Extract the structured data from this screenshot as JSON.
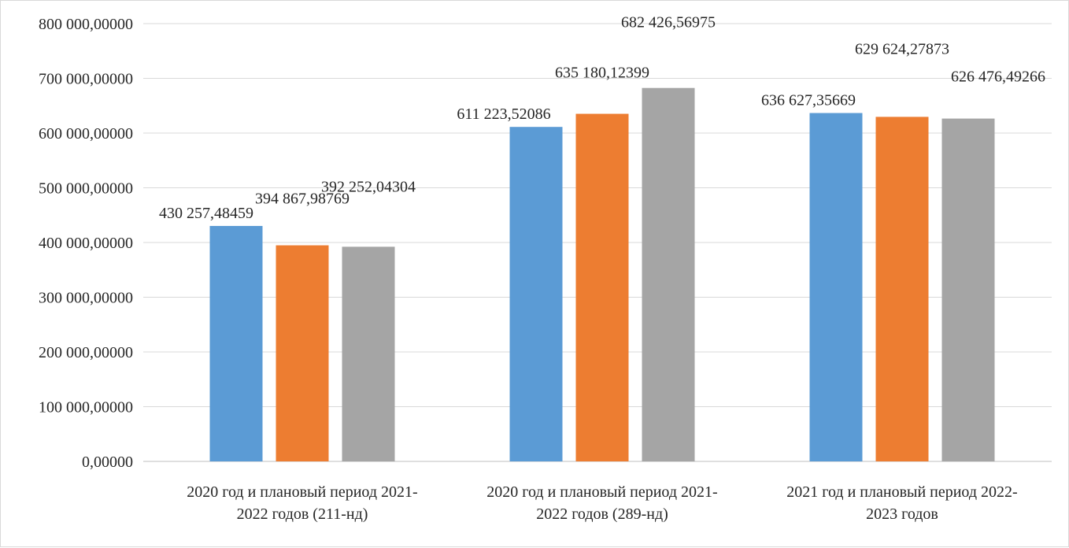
{
  "chart_data": {
    "type": "bar",
    "title": "",
    "xlabel": "",
    "ylabel": "",
    "ylim": [
      0,
      800000
    ],
    "y_ticks": [
      0,
      100000,
      200000,
      300000,
      400000,
      500000,
      600000,
      700000,
      800000
    ],
    "y_tick_labels": [
      "0,00000",
      "100 000,00000",
      "200 000,00000",
      "300 000,00000",
      "400 000,00000",
      "500 000,00000",
      "600 000,00000",
      "700 000,00000",
      "800 000,00000"
    ],
    "grid": true,
    "legend": "none",
    "categories": [
      [
        "2020 год и плановый период 2021-",
        "2022 годов (211-нд)"
      ],
      [
        "2020 год и плановый период 2021-",
        "2022 годов (289-нд)"
      ],
      [
        "2021 год и плановый период 2022-",
        "2023 годов"
      ]
    ],
    "series": [
      {
        "color": "#5b9bd5",
        "values": [
          430257.48459,
          611223.52086,
          636627.35669
        ],
        "labels": [
          "430 257,48459",
          "611 223,52086",
          "636 627,35669"
        ]
      },
      {
        "color": "#ed7d31",
        "values": [
          394867.98769,
          635180.12399,
          629624.27873
        ],
        "labels": [
          "394 867,98769",
          "635 180,12399",
          "629 624,27873"
        ]
      },
      {
        "color": "#a5a5a5",
        "values": [
          392252.04304,
          682426.56975,
          626476.49266
        ],
        "labels": [
          "392 252,04304",
          "682 426,56975",
          "626 476,49266"
        ]
      }
    ]
  }
}
